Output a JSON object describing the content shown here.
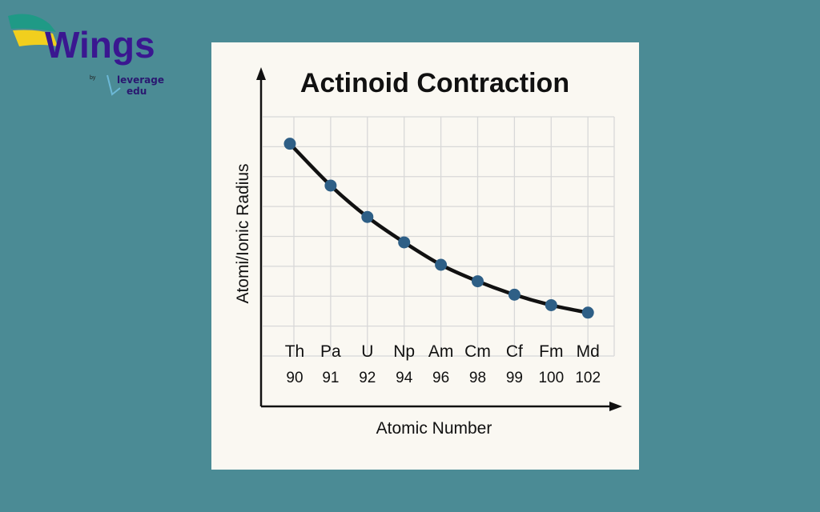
{
  "brand": {
    "name": "Wings",
    "by": "by",
    "partner_line1": "leverage",
    "partner_line2": "edu"
  },
  "colors": {
    "background": "#4b8b95",
    "panel": "#faf8f2",
    "points": "#2e5f86",
    "line": "#111111",
    "grid": "#d8d8d8"
  },
  "chart_data": {
    "type": "line",
    "title": "Actinoid Contraction",
    "xlabel": "Atomic Number",
    "ylabel": "Atomi/Ionic Radius",
    "categories": [
      "Th",
      "Pa",
      "U",
      "Np",
      "Am",
      "Cm",
      "Cf",
      "Fm",
      "Md"
    ],
    "x": [
      "90",
      "91",
      "92",
      "94",
      "96",
      "98",
      "99",
      "100",
      "102"
    ],
    "values": [
      7.1,
      5.7,
      4.65,
      3.8,
      3.05,
      2.5,
      2.05,
      1.7,
      1.45
    ],
    "ylim": [
      0,
      8
    ],
    "grid": true,
    "y_ticks_shown": false,
    "markers": true
  }
}
